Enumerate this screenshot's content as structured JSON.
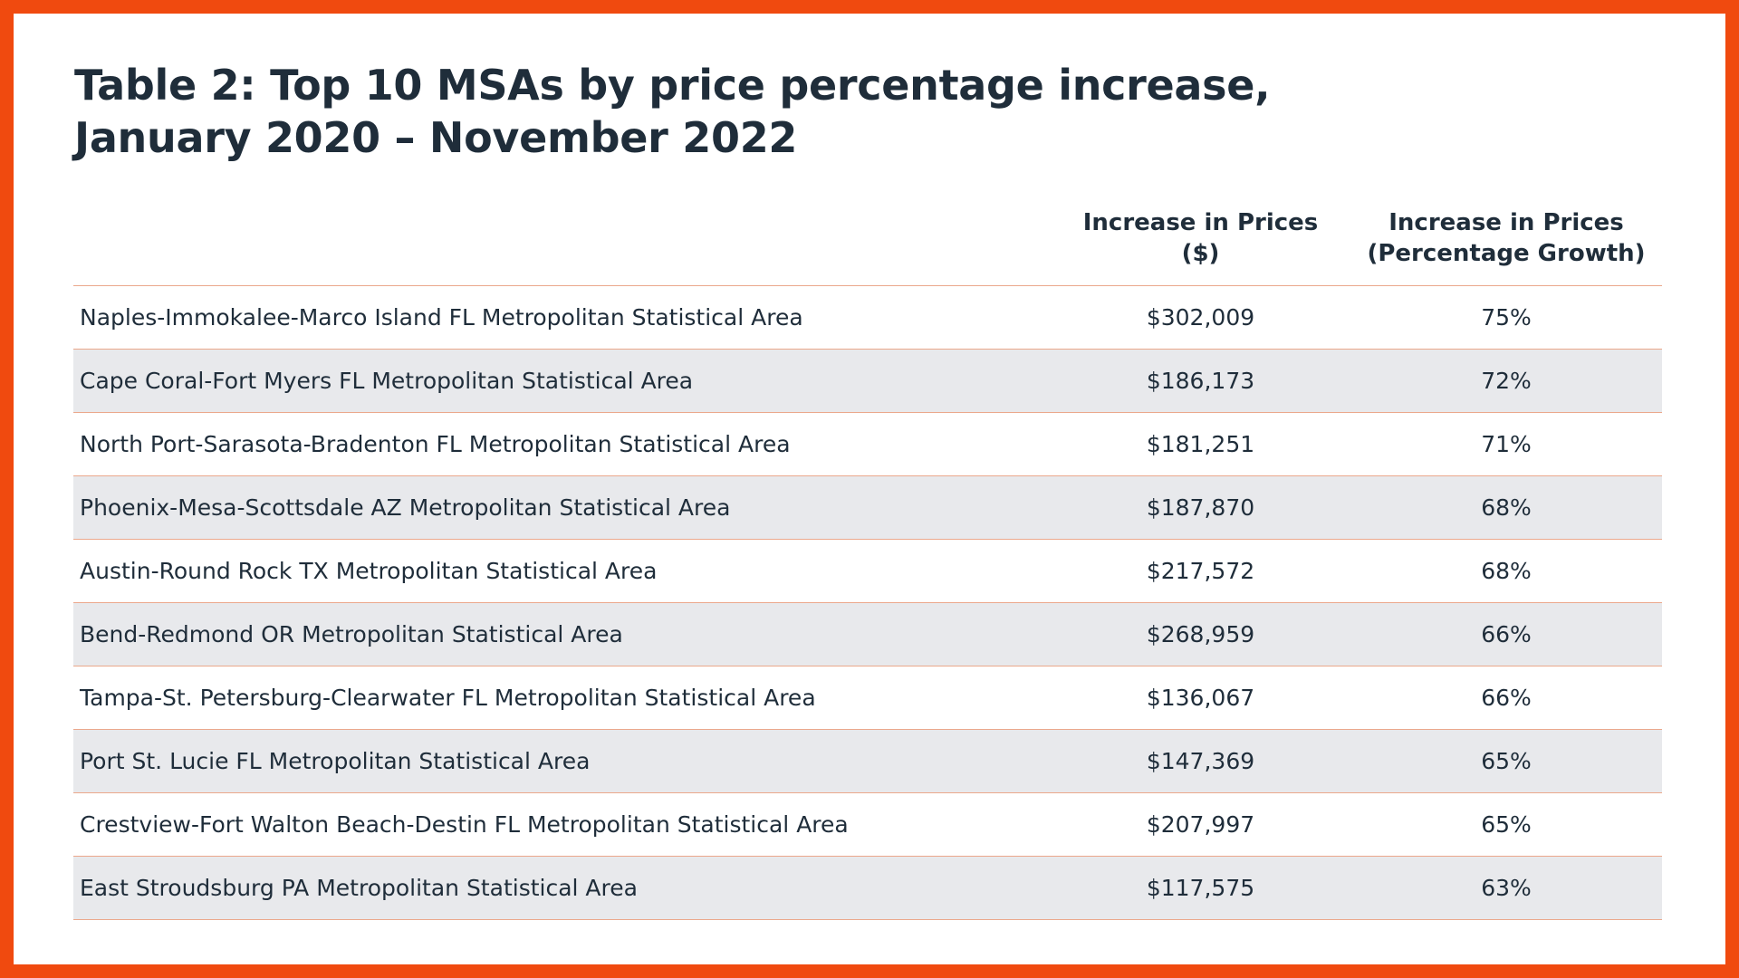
{
  "title": {
    "line1": "Table 2: Top 10 MSAs by price percentage increase,",
    "line2": "January 2020 – November 2022"
  },
  "table": {
    "columns": [
      "",
      "Increase in Prices ($)",
      "Increase in Prices (Percentage Growth)"
    ],
    "header_lines": {
      "dollar": [
        "Increase in Prices",
        "($)"
      ],
      "pct": [
        "Increase in Prices",
        "(Percentage Growth)"
      ]
    },
    "rows": [
      {
        "area": "Naples-Immokalee-Marco Island FL Metropolitan Statistical Area",
        "dollar": "$302,009",
        "pct": "75%"
      },
      {
        "area": "Cape Coral-Fort Myers FL Metropolitan Statistical Area",
        "dollar": "$186,173",
        "pct": "72%"
      },
      {
        "area": "North Port-Sarasota-Bradenton FL Metropolitan Statistical Area",
        "dollar": "$181,251",
        "pct": "71%"
      },
      {
        "area": "Phoenix-Mesa-Scottsdale AZ Metropolitan Statistical Area",
        "dollar": "$187,870",
        "pct": "68%"
      },
      {
        "area": "Austin-Round Rock TX Metropolitan Statistical Area",
        "dollar": "$217,572",
        "pct": "68%"
      },
      {
        "area": "Bend-Redmond OR Metropolitan Statistical Area",
        "dollar": "$268,959",
        "pct": "66%"
      },
      {
        "area": "Tampa-St. Petersburg-Clearwater FL Metropolitan Statistical Area",
        "dollar": "$136,067",
        "pct": "66%"
      },
      {
        "area": "Port St. Lucie FL Metropolitan Statistical Area",
        "dollar": "$147,369",
        "pct": "65%"
      },
      {
        "area": "Crestview-Fort Walton Beach-Destin FL Metropolitan Statistical Area",
        "dollar": "$207,997",
        "pct": "65%"
      },
      {
        "area": "East Stroudsburg PA Metropolitan Statistical Area",
        "dollar": "$117,575",
        "pct": "63%"
      }
    ]
  },
  "colors": {
    "border": "#F04A0F",
    "background": "#FFFFFF",
    "text": "#1F2D3A",
    "row_stripe": "#E8E9EC",
    "row_rule": "#EBA88C"
  }
}
